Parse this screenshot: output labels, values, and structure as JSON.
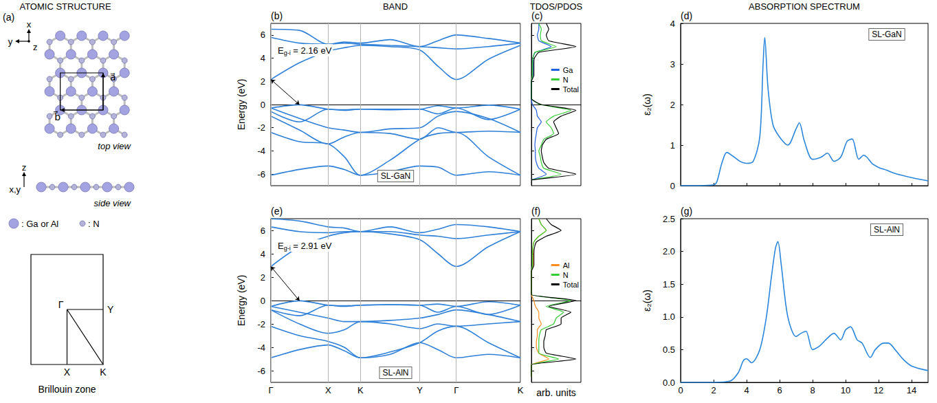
{
  "figure": {
    "headings": [
      "ATOMIC STRUCTURE",
      "BAND",
      "TDOS/PDOS",
      "ABSORPTION SPECTRUM"
    ],
    "structure": {
      "panel": "(a)",
      "top_axes": [
        "x",
        "y",
        "z"
      ],
      "vectors": [
        "a⃗",
        "b⃗"
      ],
      "top_view": "top view",
      "side_axes": [
        "z",
        "x,y"
      ],
      "side_view": "side view",
      "species": [
        ": Ga or Al",
        ": N"
      ],
      "brillouin_zone": {
        "points": [
          "Γ",
          "Y",
          "X",
          "K"
        ],
        "title": "Brillouin zone"
      }
    }
  },
  "chart_data": [
    {
      "type": "line",
      "panel": "(b)",
      "label": "SL-GaN",
      "annotation": "Eg-i = 2.16 eV",
      "ylabel": "Energy (eV)",
      "grid": true,
      "tick_labels": "y",
      "x": [
        0,
        0.415,
        0.83,
        1.065,
        1.3,
        1.73,
        2.16,
        2.425,
        2.69,
        3.155,
        3.62
      ],
      "xlim": [
        0,
        3.62
      ],
      "xticks": [
        {
          "value": 0,
          "label": "Γ"
        },
        {
          "value": 0.83,
          "label": "X"
        },
        {
          "value": 1.3,
          "label": "K"
        },
        {
          "value": 2.16,
          "label": "Y"
        },
        {
          "value": 2.69,
          "label": "Γ"
        },
        {
          "value": 3.62,
          "label": "K"
        }
      ],
      "ylim": [
        -7,
        7
      ],
      "yticks": [
        -6,
        -4,
        -2,
        0,
        2,
        4,
        6
      ],
      "series": [
        {
          "color": "#2f80d8",
          "values": [
            2.16,
            3.6,
            4.6,
            4.9,
            5.1,
            5.0,
            4.7,
            3.3,
            2.16,
            3.9,
            5.1
          ]
        },
        {
          "color": "#2f80d8",
          "values": [
            5.8,
            5.3,
            5.2,
            5.3,
            5.2,
            5.1,
            5.0,
            4.9,
            4.8,
            5.0,
            5.3
          ]
        },
        {
          "color": "#2f80d8",
          "values": [
            6.5,
            6.4,
            5.2,
            5.4,
            5.3,
            5.6,
            5.0,
            5.5,
            6.0,
            5.7,
            5.3
          ]
        },
        {
          "color": "#2f80d8",
          "values": [
            -0.3,
            -0.02,
            -0.4,
            -0.45,
            -0.4,
            -0.4,
            -0.4,
            -0.1,
            -0.3,
            -0.05,
            -0.4
          ]
        },
        {
          "color": "#2f80d8",
          "values": [
            -0.6,
            -1.5,
            -0.4,
            -0.5,
            -0.4,
            -0.45,
            -0.4,
            -0.8,
            -0.3,
            -1.3,
            -0.4
          ]
        },
        {
          "color": "#2f80d8",
          "values": [
            -0.3,
            -1.2,
            -2.0,
            -2.2,
            -2.4,
            -2.1,
            -2.0,
            -1.0,
            -0.6,
            -1.2,
            -2.4
          ]
        },
        {
          "color": "#2f80d8",
          "values": [
            -1.0,
            -2.2,
            -3.4,
            -2.8,
            -2.4,
            -2.5,
            -3.0,
            -2.0,
            -2.4,
            -2.3,
            -2.4
          ]
        },
        {
          "color": "#2f80d8",
          "values": [
            -2.4,
            -3.2,
            -3.4,
            -4.5,
            -6.1,
            -4.8,
            -3.0,
            -2.5,
            -2.4,
            -4.5,
            -6.1
          ]
        },
        {
          "color": "#2f80d8",
          "values": [
            -6.1,
            -5.6,
            -5.3,
            -5.6,
            -6.1,
            -5.8,
            -5.3,
            -5.4,
            -6.1,
            -5.8,
            -6.1
          ]
        }
      ]
    },
    {
      "type": "line",
      "panel": "(c)",
      "orientation": "horizontal",
      "legend": "right",
      "tick_labels": false,
      "y": [
        -6.5,
        -6,
        -5.5,
        -5,
        -4.5,
        -4,
        -3.5,
        -3,
        -2.5,
        -2,
        -1.5,
        -1,
        -0.5,
        0,
        0.5,
        1,
        1.5,
        2,
        2.5,
        3,
        3.5,
        4,
        4.5,
        5,
        5.5,
        6,
        6.5,
        7
      ],
      "xlim": [
        0,
        1
      ],
      "ylim": [
        -7,
        7
      ],
      "yticks": [
        -6,
        -4,
        -2,
        0,
        2,
        4,
        6
      ],
      "series": [
        {
          "name": "Ga",
          "color": "#1f5fe0",
          "values": [
            0,
            0.3,
            0.15,
            0.1,
            0.08,
            0.08,
            0.07,
            0.08,
            0.1,
            0.12,
            0.2,
            0.12,
            0.1,
            0.02,
            0,
            0,
            0,
            0,
            0.03,
            0.03,
            0.03,
            0.03,
            0.08,
            0.4,
            0.15,
            0.12,
            0.15,
            0.15
          ]
        },
        {
          "name": "N",
          "color": "#33cc33",
          "values": [
            0,
            0.6,
            0.25,
            0.2,
            0.18,
            0.15,
            0.2,
            0.25,
            0.45,
            0.4,
            0.3,
            0.45,
            0.8,
            0.18,
            0,
            0,
            0,
            0,
            0.02,
            0.02,
            0.02,
            0.03,
            0.07,
            0.5,
            0.2,
            0.18,
            0.2,
            0.15
          ]
        },
        {
          "name": "Total",
          "color": "#000000",
          "values": [
            0,
            0.9,
            0.35,
            0.25,
            0.22,
            0.2,
            0.22,
            0.3,
            0.55,
            0.5,
            0.45,
            0.6,
            0.9,
            0.2,
            0,
            0,
            0,
            0,
            0.05,
            0.05,
            0.05,
            0.06,
            0.15,
            0.9,
            0.35,
            0.3,
            0.35,
            0.3
          ]
        }
      ]
    },
    {
      "type": "line",
      "panel": "(d)",
      "label": "SL-GaN",
      "ylabel": "ε₂(ω)",
      "tick_labels": "y",
      "x": [
        0,
        1,
        2,
        2.2,
        2.5,
        2.8,
        3.2,
        3.6,
        4,
        4.4,
        4.8,
        5.0,
        5.1,
        5.3,
        5.6,
        6,
        6.5,
        7,
        7.2,
        7.5,
        8,
        8.5,
        8.9,
        9.3,
        9.7,
        10.1,
        10.4,
        10.8,
        11.1,
        11.3,
        11.6,
        12,
        12.5,
        13,
        14,
        15
      ],
      "xlim": [
        0,
        15
      ],
      "xticks": [
        0,
        2,
        4,
        6,
        8,
        10,
        12,
        14
      ],
      "ylim": [
        0,
        4
      ],
      "yticks": [
        0,
        1,
        2,
        3,
        4
      ],
      "series": [
        {
          "color": "#2a86dc",
          "values": [
            0,
            0,
            0.02,
            0.1,
            0.55,
            0.82,
            0.72,
            0.6,
            0.55,
            0.6,
            1.2,
            3.0,
            3.65,
            2.4,
            1.5,
            1.2,
            1.0,
            1.4,
            1.55,
            1.1,
            0.65,
            0.7,
            0.8,
            0.6,
            0.7,
            1.1,
            1.15,
            0.65,
            0.75,
            0.7,
            0.55,
            0.45,
            0.38,
            0.3,
            0.2,
            0.12
          ]
        }
      ]
    },
    {
      "type": "line",
      "panel": "(e)",
      "label": "SL-AlN",
      "annotation": "Eg-i = 2.91 eV",
      "ylabel": "Energy (eV)",
      "grid": true,
      "tick_labels": true,
      "x": [
        0,
        0.415,
        0.83,
        1.065,
        1.3,
        1.73,
        2.16,
        2.425,
        2.69,
        3.155,
        3.62
      ],
      "xlim": [
        0,
        3.62
      ],
      "xticks": [
        {
          "value": 0,
          "label": "Γ"
        },
        {
          "value": 0.83,
          "label": "X"
        },
        {
          "value": 1.3,
          "label": "K"
        },
        {
          "value": 2.16,
          "label": "Y"
        },
        {
          "value": 2.69,
          "label": "Γ"
        },
        {
          "value": 3.62,
          "label": "K"
        }
      ],
      "ylim": [
        -7,
        7
      ],
      "yticks": [
        -6,
        -4,
        -2,
        0,
        2,
        4,
        6
      ],
      "series": [
        {
          "color": "#2f80d8",
          "values": [
            2.91,
            4.6,
            5.5,
            5.8,
            5.9,
            5.7,
            5.2,
            4.0,
            2.91,
            4.6,
            5.9
          ]
        },
        {
          "color": "#2f80d8",
          "values": [
            6.3,
            5.9,
            5.8,
            5.9,
            5.9,
            5.9,
            5.6,
            5.5,
            5.3,
            5.6,
            5.9
          ]
        },
        {
          "color": "#2f80d8",
          "values": [
            7.0,
            6.8,
            6.3,
            6.2,
            5.9,
            6.3,
            5.8,
            6.1,
            6.5,
            6.3,
            5.9
          ]
        },
        {
          "color": "#2f80d8",
          "values": [
            -0.5,
            -0.02,
            -0.4,
            -0.45,
            -0.4,
            -0.35,
            -0.4,
            -0.3,
            -0.5,
            -0.1,
            -0.4
          ]
        },
        {
          "color": "#2f80d8",
          "values": [
            -0.8,
            -1.3,
            -0.4,
            -0.5,
            -0.4,
            -0.35,
            -0.4,
            -1.0,
            -0.5,
            -1.2,
            -0.4
          ]
        },
        {
          "color": "#2f80d8",
          "values": [
            -0.5,
            -1.0,
            -1.5,
            -1.8,
            -1.8,
            -1.7,
            -1.5,
            -1.2,
            -0.8,
            -1.2,
            -1.8
          ]
        },
        {
          "color": "#2f80d8",
          "values": [
            -0.8,
            -2.0,
            -2.8,
            -2.5,
            -1.8,
            -2.0,
            -2.4,
            -2.0,
            -2.2,
            -2.0,
            -1.8
          ]
        },
        {
          "color": "#2f80d8",
          "values": [
            -2.2,
            -3.0,
            -3.5,
            -4.0,
            -4.9,
            -4.4,
            -3.6,
            -2.6,
            -2.2,
            -3.6,
            -4.9
          ]
        },
        {
          "color": "#2f80d8",
          "values": [
            -4.9,
            -4.2,
            -3.8,
            -4.3,
            -4.9,
            -4.6,
            -3.6,
            -4.2,
            -4.9,
            -4.6,
            -4.9
          ]
        }
      ]
    },
    {
      "type": "line",
      "panel": "(f)",
      "orientation": "horizontal",
      "legend": "right",
      "tick_labels": false,
      "xlabel": "arb. units",
      "y": [
        -6.5,
        -6,
        -5.5,
        -5,
        -4.5,
        -4,
        -3.5,
        -3,
        -2.5,
        -2,
        -1.5,
        -1,
        -0.5,
        0,
        0.5,
        1,
        1.5,
        2,
        2.5,
        3,
        3.5,
        4,
        4.5,
        5,
        5.5,
        6,
        6.5,
        7
      ],
      "xlim": [
        0,
        1
      ],
      "ylim": [
        -7,
        7
      ],
      "yticks": [
        -6,
        -4,
        -2,
        0,
        2,
        4,
        6
      ],
      "series": [
        {
          "name": "Al",
          "color": "#ff8c1a",
          "values": [
            0,
            0,
            0,
            0.35,
            0.15,
            0.1,
            0.1,
            0.12,
            0.12,
            0.2,
            0.15,
            0.15,
            0.08,
            0.05,
            0,
            0,
            0,
            0,
            0,
            0.03,
            0.03,
            0.03,
            0.03,
            0.05,
            0.15,
            0.3,
            0.2,
            0.15
          ]
        },
        {
          "name": "N",
          "color": "#33cc33",
          "values": [
            0,
            0,
            0,
            0.55,
            0.15,
            0.15,
            0.15,
            0.16,
            0.2,
            0.45,
            0.5,
            0.65,
            0.3,
            0.8,
            0,
            0,
            0,
            0,
            0,
            0.02,
            0.02,
            0.02,
            0.03,
            0.05,
            0.15,
            0.3,
            0.2,
            0.15
          ]
        },
        {
          "name": "Total",
          "color": "#000000",
          "values": [
            0,
            0,
            0,
            0.9,
            0.3,
            0.25,
            0.25,
            0.28,
            0.3,
            0.6,
            0.6,
            0.8,
            0.35,
            0.9,
            0,
            0,
            0,
            0,
            0,
            0.05,
            0.05,
            0.05,
            0.06,
            0.1,
            0.3,
            0.6,
            0.4,
            0.3
          ]
        }
      ]
    },
    {
      "type": "line",
      "panel": "(g)",
      "label": "SL-AlN",
      "ylabel": "ε₂(ω)",
      "tick_labels": true,
      "x": [
        0,
        1,
        2,
        3,
        3.5,
        3.8,
        4,
        4.3,
        4.8,
        5.2,
        5.5,
        5.75,
        5.9,
        6.1,
        6.5,
        7,
        7.3,
        7.6,
        8,
        8.4,
        8.8,
        9.3,
        9.7,
        10,
        10.3,
        10.7,
        11,
        11.5,
        11.8,
        12.3,
        12.6,
        13,
        13.5,
        14,
        15
      ],
      "xlim": [
        0,
        15
      ],
      "xticks": [
        0,
        2,
        4,
        6,
        8,
        10,
        12,
        14
      ],
      "ylim": [
        0,
        2.5
      ],
      "yticks": [
        {
          "value": 0,
          "label": "0.0"
        },
        0.5,
        {
          "value": 1,
          "label": "1.0"
        },
        1.5,
        {
          "value": 2,
          "label": "2.0"
        },
        2.5
      ],
      "series": [
        {
          "color": "#2a86dc",
          "values": [
            0,
            0,
            0,
            0.02,
            0.15,
            0.33,
            0.36,
            0.3,
            0.5,
            1.0,
            1.6,
            2.05,
            2.15,
            1.8,
            1.0,
            0.7,
            0.75,
            0.78,
            0.5,
            0.55,
            0.65,
            0.75,
            0.65,
            0.8,
            0.85,
            0.65,
            0.6,
            0.38,
            0.5,
            0.6,
            0.6,
            0.5,
            0.35,
            0.25,
            0.18
          ]
        }
      ]
    }
  ]
}
